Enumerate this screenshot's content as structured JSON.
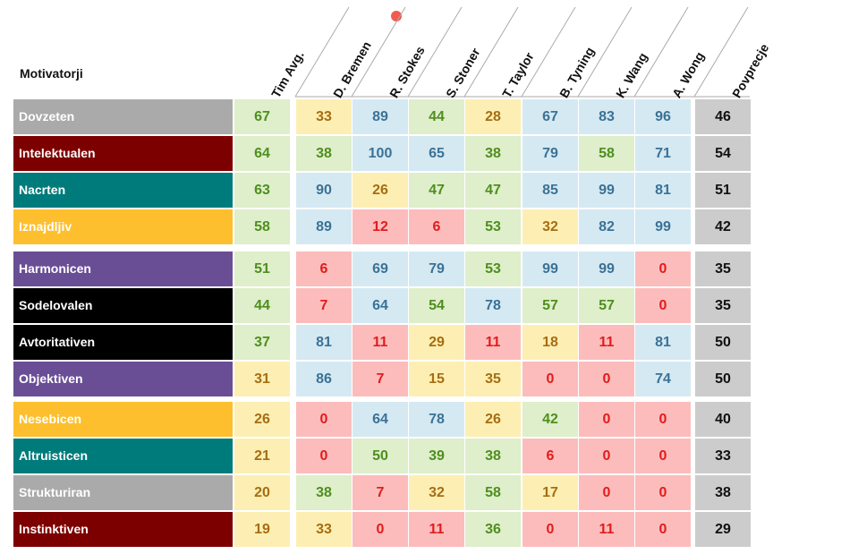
{
  "chart_data": {
    "type": "table",
    "corner_label": "Motivatorji",
    "columns": [
      "Tim Avg.",
      "D. Bremen",
      "R. Stokes",
      "S. Stoner",
      "T. Taylor",
      "B. Tyning",
      "K. Wang",
      "A. Wong",
      "Povprecje"
    ],
    "groups": [
      [
        {
          "label": "Dovzeten",
          "color": "#aaaaaa",
          "values": [
            67,
            33,
            89,
            44,
            28,
            67,
            83,
            96
          ],
          "avg": 46
        },
        {
          "label": "Intelektualen",
          "color": "#7d0000",
          "values": [
            64,
            38,
            100,
            65,
            38,
            79,
            58,
            71
          ],
          "avg": 54
        },
        {
          "label": "Nacrten",
          "color": "#007b7b",
          "values": [
            63,
            90,
            26,
            47,
            47,
            85,
            99,
            81
          ],
          "avg": 51
        },
        {
          "label": "Iznajdljiv",
          "color": "#fdbf2d",
          "values": [
            58,
            89,
            12,
            6,
            53,
            32,
            82,
            99
          ],
          "avg": 42
        }
      ],
      [
        {
          "label": "Harmonicen",
          "color": "#6a4e95",
          "values": [
            51,
            6,
            69,
            79,
            53,
            99,
            99,
            0
          ],
          "avg": 35
        },
        {
          "label": "Sodelovalen",
          "color": "#000000",
          "values": [
            44,
            7,
            64,
            54,
            78,
            57,
            57,
            0
          ],
          "avg": 35
        },
        {
          "label": "Avtoritativen",
          "color": "#000000",
          "values": [
            37,
            81,
            11,
            29,
            11,
            18,
            11,
            81
          ],
          "avg": 50
        },
        {
          "label": "Objektiven",
          "color": "#6a4e95",
          "values": [
            31,
            86,
            7,
            15,
            35,
            0,
            0,
            74
          ],
          "avg": 50
        }
      ],
      [
        {
          "label": "Nesebicen",
          "color": "#fdbf2d",
          "values": [
            26,
            0,
            64,
            78,
            26,
            42,
            0,
            0
          ],
          "avg": 40
        },
        {
          "label": "Altruisticen",
          "color": "#007b7b",
          "values": [
            21,
            0,
            50,
            39,
            38,
            6,
            0,
            0
          ],
          "avg": 33
        },
        {
          "label": "Strukturiran",
          "color": "#aaaaaa",
          "values": [
            20,
            38,
            7,
            32,
            58,
            17,
            0,
            0
          ],
          "avg": 38
        },
        {
          "label": "Instinktiven",
          "color": "#7d0000",
          "values": [
            19,
            33,
            0,
            11,
            36,
            0,
            11,
            0
          ],
          "avg": 29
        }
      ]
    ],
    "bands": {
      "high": {
        "bg": "#d5e9f3",
        "fg": "#3b7295"
      },
      "good": {
        "bg": "#dfeecb",
        "fg": "#4e8f1e"
      },
      "mid": {
        "bg": "#fdefb3",
        "fg": "#a66d12"
      },
      "low": {
        "bg": "#fcbcbc",
        "fg": "#e21c1c"
      }
    }
  }
}
